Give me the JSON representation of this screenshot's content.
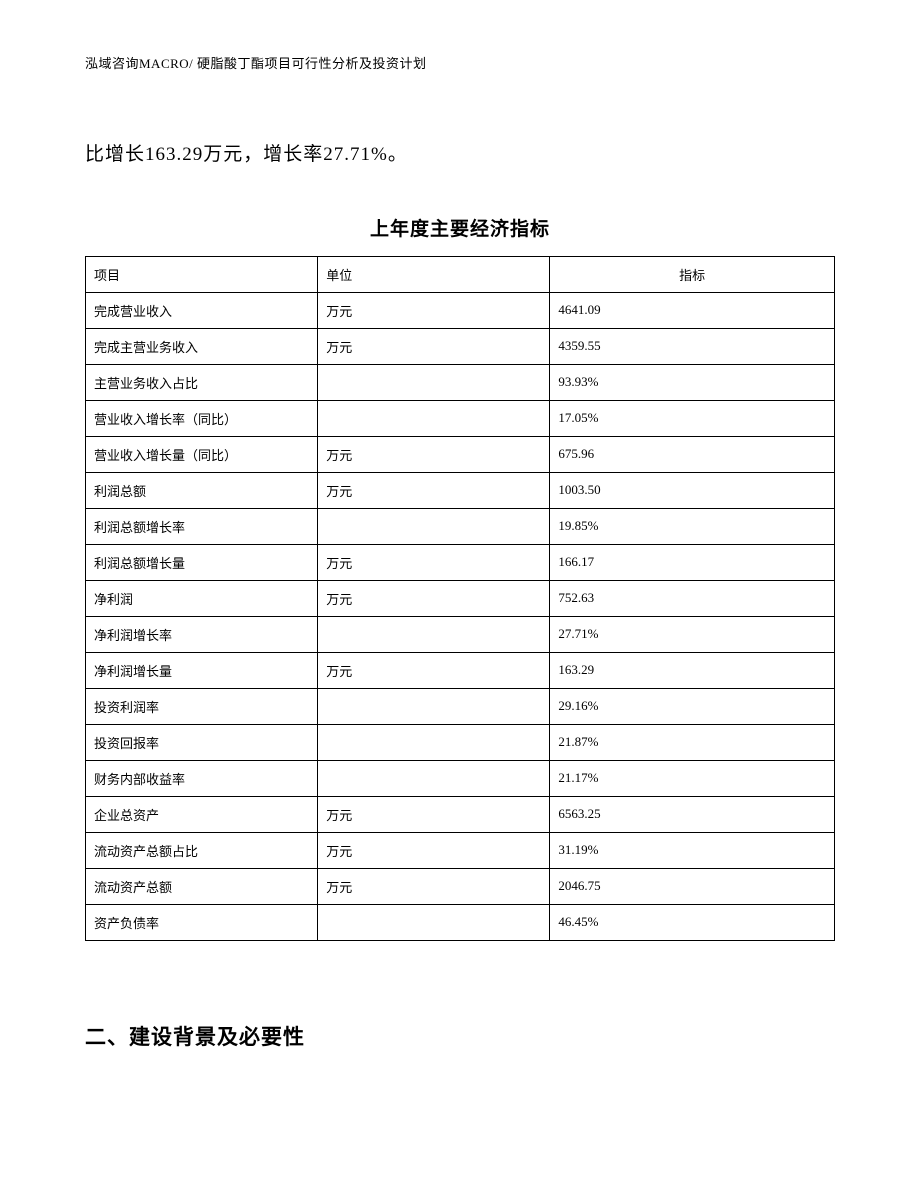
{
  "header": {
    "text": "泓域咨询MACRO/ 硬脂酸丁酯项目可行性分析及投资计划"
  },
  "body": {
    "paragraph": "比增长163.29万元，增长率27.71%。"
  },
  "table": {
    "title": "上年度主要经济指标",
    "columns": {
      "item": "项目",
      "unit": "单位",
      "value": "指标"
    },
    "rows": [
      {
        "item": "完成营业收入",
        "unit": "万元",
        "value": "4641.09"
      },
      {
        "item": "完成主营业务收入",
        "unit": "万元",
        "value": "4359.55"
      },
      {
        "item": "主营业务收入占比",
        "unit": "",
        "value": "93.93%"
      },
      {
        "item": "营业收入增长率（同比）",
        "unit": "",
        "value": "17.05%"
      },
      {
        "item": "营业收入增长量（同比）",
        "unit": "万元",
        "value": "675.96"
      },
      {
        "item": "利润总额",
        "unit": "万元",
        "value": "1003.50"
      },
      {
        "item": "利润总额增长率",
        "unit": "",
        "value": "19.85%"
      },
      {
        "item": "利润总额增长量",
        "unit": "万元",
        "value": "166.17"
      },
      {
        "item": "净利润",
        "unit": "万元",
        "value": "752.63"
      },
      {
        "item": "净利润增长率",
        "unit": "",
        "value": "27.71%"
      },
      {
        "item": "净利润增长量",
        "unit": "万元",
        "value": "163.29"
      },
      {
        "item": "投资利润率",
        "unit": "",
        "value": "29.16%"
      },
      {
        "item": "投资回报率",
        "unit": "",
        "value": "21.87%"
      },
      {
        "item": "财务内部收益率",
        "unit": "",
        "value": "21.17%"
      },
      {
        "item": "企业总资产",
        "unit": "万元",
        "value": "6563.25"
      },
      {
        "item": "流动资产总额占比",
        "unit": "万元",
        "value": "31.19%"
      },
      {
        "item": "流动资产总额",
        "unit": "万元",
        "value": "2046.75"
      },
      {
        "item": "资产负债率",
        "unit": "",
        "value": "46.45%"
      }
    ]
  },
  "section": {
    "heading": "二、建设背景及必要性"
  },
  "style": {
    "page_bg": "#ffffff",
    "border_color": "#000000",
    "text_color": "#000000",
    "header_fontsize": 13,
    "body_fontsize": 19,
    "table_title_fontsize": 19,
    "cell_fontsize": 13,
    "section_fontsize": 21
  }
}
